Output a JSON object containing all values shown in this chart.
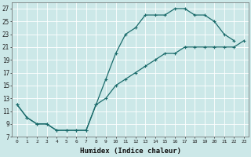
{
  "xlabel": "Humidex (Indice chaleur)",
  "bg_color": "#cce8e8",
  "grid_color": "#ffffff",
  "line_color": "#1a6b6b",
  "marker": "+",
  "markersize": 3,
  "linewidth": 0.9,
  "markeredgewidth": 0.8,
  "xlim": [
    -0.5,
    23.5
  ],
  "ylim": [
    7,
    28
  ],
  "xticks": [
    0,
    1,
    2,
    3,
    4,
    5,
    6,
    7,
    8,
    9,
    10,
    11,
    12,
    13,
    14,
    15,
    16,
    17,
    18,
    19,
    20,
    21,
    22,
    23
  ],
  "yticks": [
    7,
    9,
    11,
    13,
    15,
    17,
    19,
    21,
    23,
    25,
    27
  ],
  "line1_x": [
    0,
    1,
    2,
    3,
    4,
    5,
    6,
    7,
    8,
    9,
    10,
    11,
    12,
    13,
    14,
    15,
    16,
    17,
    18,
    19,
    20,
    21,
    22
  ],
  "line1_y": [
    12,
    10,
    9,
    9,
    8,
    8,
    8,
    8,
    12,
    16,
    20,
    23,
    24,
    26,
    26,
    26,
    27,
    27,
    26,
    26,
    25,
    23,
    22
  ],
  "line2_x": [
    0,
    1,
    2,
    3,
    4,
    5,
    6,
    7,
    8,
    9,
    10,
    11,
    12,
    13,
    14,
    15,
    16,
    17,
    18,
    19,
    20,
    21,
    22,
    23
  ],
  "line2_y": [
    12,
    10,
    9,
    9,
    8,
    8,
    8,
    8,
    12,
    13,
    15,
    16,
    17,
    18,
    19,
    20,
    20,
    21,
    21,
    21,
    21,
    21,
    21,
    22
  ]
}
